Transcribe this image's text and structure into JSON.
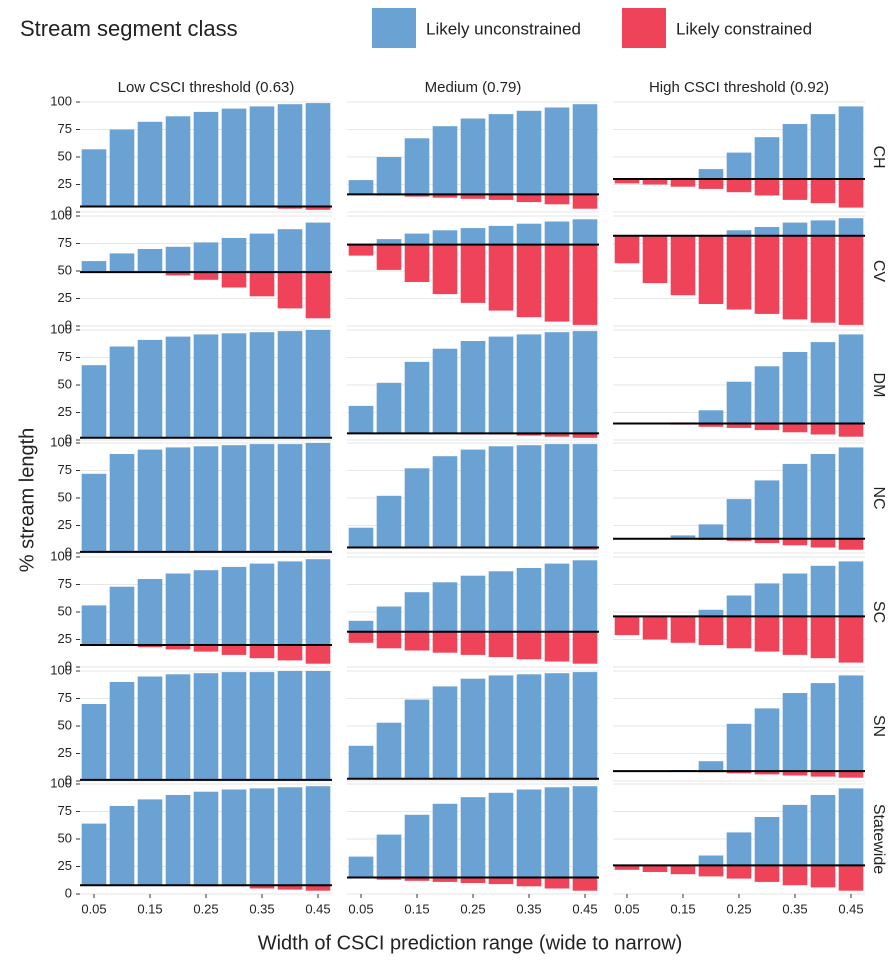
{
  "chart_data": {
    "type": "bar",
    "legend_title": "Stream segment class",
    "series": [
      {
        "name": "Likely unconstrained",
        "color": "#6aa2d4"
      },
      {
        "name": "Likely constrained",
        "color": "#ee4358"
      }
    ],
    "x_label": "Width of CSCI prediction range (wide to narrow)",
    "y_label": "% stream length",
    "columns": [
      "Low CSCI threshold (0.63)",
      "Medium (0.79)",
      "High CSCI threshold (0.92)"
    ],
    "rows": [
      "CH",
      "CV",
      "DM",
      "NC",
      "SC",
      "SN",
      "Statewide"
    ],
    "x": [
      0.05,
      0.1,
      0.15,
      0.2,
      0.25,
      0.3,
      0.35,
      0.4,
      0.45
    ],
    "xlim": [
      0.025,
      0.475
    ],
    "xticks": [
      0.05,
      0.15,
      0.25,
      0.35,
      0.45
    ],
    "ylim": [
      0,
      100
    ],
    "yticks": [
      0,
      25,
      50,
      75,
      100
    ],
    "grid": true,
    "panels": [
      [
        {
          "baseline": 5,
          "series": [
            {
              "values": [
                57,
                75,
                82,
                87,
                91,
                94,
                96,
                98,
                99
              ]
            },
            {
              "values": [
                5,
                5,
                5,
                5,
                5,
                5,
                4,
                3,
                2
              ]
            }
          ]
        },
        {
          "baseline": 16,
          "series": [
            {
              "values": [
                29,
                50,
                67,
                78,
                85,
                89,
                92,
                95,
                98
              ]
            },
            {
              "values": [
                16,
                15,
                14,
                13,
                12,
                11,
                9,
                7,
                3
              ]
            }
          ]
        },
        {
          "baseline": 30,
          "series": [
            {
              "values": [
                30,
                30,
                31,
                39,
                54,
                68,
                80,
                89,
                96
              ]
            },
            {
              "values": [
                26,
                25,
                23,
                21,
                18,
                15,
                11,
                8,
                4
              ]
            }
          ]
        }
      ],
      [
        {
          "baseline": 49,
          "series": [
            {
              "values": [
                59,
                66,
                70,
                72,
                76,
                80,
                84,
                88,
                94
              ]
            },
            {
              "values": [
                49,
                49,
                49,
                46,
                42,
                35,
                27,
                16,
                7
              ]
            }
          ]
        },
        {
          "baseline": 74,
          "series": [
            {
              "values": [
                74,
                79,
                84,
                87,
                89,
                91,
                93,
                95,
                97
              ]
            },
            {
              "values": [
                64,
                51,
                40,
                29,
                21,
                14,
                8,
                4,
                1
              ]
            }
          ]
        },
        {
          "baseline": 82,
          "series": [
            {
              "values": [
                82,
                82,
                82,
                82,
                87,
                90,
                94,
                96,
                98
              ]
            },
            {
              "values": [
                57,
                39,
                28,
                20,
                15,
                11,
                6,
                3,
                1
              ]
            }
          ]
        }
      ],
      [
        {
          "baseline": 2,
          "series": [
            {
              "values": [
                68,
                85,
                91,
                94,
                96,
                97,
                98,
                99,
                100
              ]
            },
            {
              "values": [
                2,
                2,
                2,
                2,
                2,
                2,
                2,
                2,
                2
              ]
            }
          ]
        },
        {
          "baseline": 6,
          "series": [
            {
              "values": [
                31,
                52,
                71,
                83,
                90,
                94,
                96,
                98,
                99
              ]
            },
            {
              "values": [
                6,
                6,
                6,
                6,
                5,
                5,
                4,
                3,
                2
              ]
            }
          ]
        },
        {
          "baseline": 15,
          "series": [
            {
              "values": [
                15,
                15,
                16,
                27,
                53,
                67,
                80,
                89,
                96
              ]
            },
            {
              "values": [
                15,
                15,
                14,
                12,
                11,
                9,
                7,
                5,
                3
              ]
            }
          ]
        }
      ],
      [
        {
          "baseline": 1,
          "series": [
            {
              "values": [
                72,
                90,
                94,
                96,
                97,
                98,
                99,
                99,
                100
              ]
            },
            {
              "values": [
                1,
                1,
                1,
                1,
                1,
                1,
                1,
                1,
                1
              ]
            }
          ]
        },
        {
          "baseline": 5,
          "series": [
            {
              "values": [
                23,
                52,
                77,
                88,
                94,
                97,
                98,
                99,
                99
              ]
            },
            {
              "values": [
                5,
                5,
                5,
                5,
                5,
                5,
                4,
                4,
                3
              ]
            }
          ]
        },
        {
          "baseline": 13,
          "series": [
            {
              "values": [
                13,
                13,
                16,
                26,
                49,
                66,
                81,
                90,
                96
              ]
            },
            {
              "values": [
                13,
                13,
                13,
                12,
                11,
                9,
                7,
                5,
                3
              ]
            }
          ]
        }
      ],
      [
        {
          "baseline": 20,
          "series": [
            {
              "values": [
                56,
                73,
                80,
                85,
                88,
                91,
                94,
                96,
                98
              ]
            },
            {
              "values": [
                20,
                20,
                18,
                16,
                14,
                11,
                8,
                6,
                3
              ]
            }
          ]
        },
        {
          "baseline": 32,
          "series": [
            {
              "values": [
                42,
                55,
                68,
                77,
                83,
                87,
                90,
                94,
                97
              ]
            },
            {
              "values": [
                22,
                17,
                15,
                13,
                11,
                9,
                7,
                5,
                3
              ]
            }
          ]
        },
        {
          "baseline": 46,
          "series": [
            {
              "values": [
                46,
                46,
                46,
                52,
                65,
                76,
                85,
                92,
                96
              ]
            },
            {
              "values": [
                29,
                25,
                22,
                20,
                17,
                14,
                11,
                8,
                4
              ]
            }
          ]
        }
      ],
      [
        {
          "baseline": 1,
          "series": [
            {
              "values": [
                70,
                90,
                95,
                97,
                98,
                99,
                99,
                100,
                100
              ]
            },
            {
              "values": [
                1,
                1,
                1,
                1,
                1,
                1,
                1,
                1,
                1
              ]
            }
          ]
        },
        {
          "baseline": 2,
          "series": [
            {
              "values": [
                32,
                53,
                74,
                86,
                93,
                96,
                97,
                98,
                99
              ]
            },
            {
              "values": [
                2,
                2,
                2,
                2,
                2,
                2,
                2,
                1,
                1
              ]
            }
          ]
        },
        {
          "baseline": 9,
          "series": [
            {
              "values": [
                9,
                9,
                10,
                18,
                52,
                66,
                80,
                89,
                96
              ]
            },
            {
              "values": [
                9,
                9,
                9,
                8,
                7,
                6,
                5,
                4,
                3
              ]
            }
          ]
        }
      ],
      [
        {
          "baseline": 8,
          "series": [
            {
              "values": [
                64,
                80,
                86,
                90,
                93,
                95,
                96,
                97,
                98
              ]
            },
            {
              "values": [
                8,
                8,
                8,
                8,
                7,
                7,
                5,
                4,
                3
              ]
            }
          ]
        },
        {
          "baseline": 15,
          "series": [
            {
              "values": [
                34,
                54,
                72,
                82,
                88,
                92,
                95,
                97,
                98
              ]
            },
            {
              "values": [
                15,
                13,
                12,
                11,
                10,
                9,
                7,
                5,
                3
              ]
            }
          ]
        },
        {
          "baseline": 26,
          "series": [
            {
              "values": [
                26,
                26,
                26,
                35,
                56,
                70,
                81,
                90,
                96
              ]
            },
            {
              "values": [
                22,
                20,
                18,
                16,
                14,
                11,
                8,
                6,
                3
              ]
            }
          ]
        }
      ]
    ]
  }
}
